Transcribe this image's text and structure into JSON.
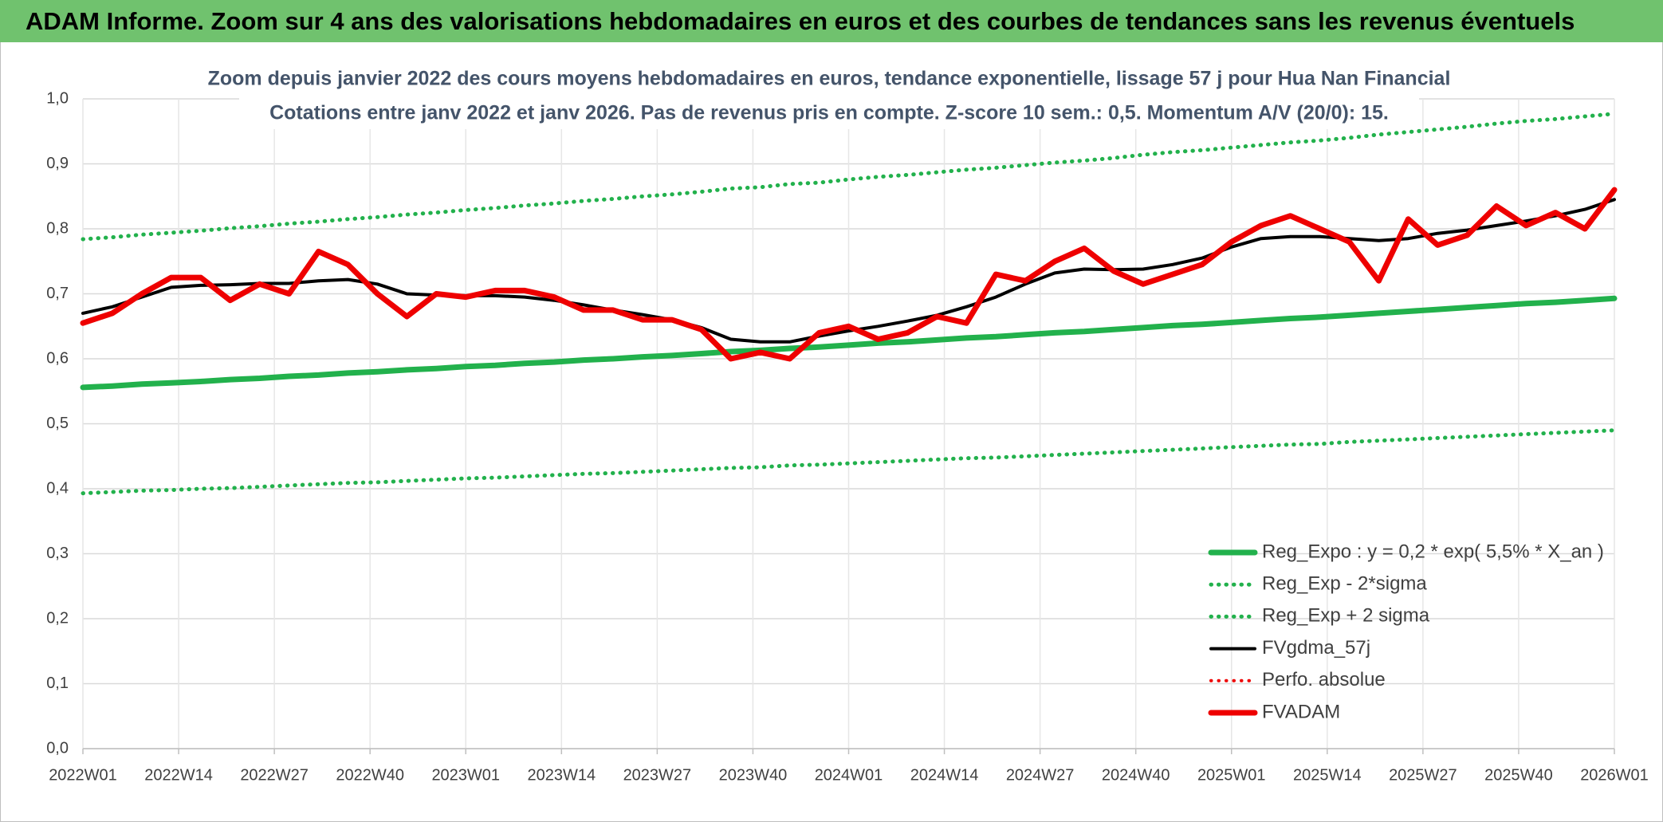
{
  "chart_data": {
    "type": "line",
    "header": "ADAM Informe. Zoom sur 4 ans des valorisations hebdomadaires en euros et des courbes de tendances sans les revenus éventuels",
    "title": "Zoom depuis janvier 2022  des cours moyens hebdomadaires en euros, tendance exponentielle, lissage 57 j pour Hua Nan Financial",
    "subtitle": "Cotations entre janv 2022 et janv 2026. Pas de revenus pris en compte. Z-score 10 sem.: 0,5. Momentum A/V (20/0): 15.",
    "x": [
      0,
      4,
      8,
      12,
      16,
      20,
      24,
      28,
      32,
      36,
      40,
      44,
      48,
      52,
      56,
      60,
      64,
      68,
      72,
      76,
      80,
      84,
      88,
      92,
      96,
      100,
      104,
      108,
      112,
      116,
      120,
      124,
      128,
      132,
      136,
      140,
      144,
      148,
      152,
      156,
      160,
      164,
      168,
      172,
      176,
      180,
      184,
      188,
      192,
      196,
      200,
      204,
      208
    ],
    "xlim": [
      0,
      208
    ],
    "xticks": [
      {
        "value": 0,
        "label": "2022W01"
      },
      {
        "value": 13,
        "label": "2022W14"
      },
      {
        "value": 26,
        "label": "2022W27"
      },
      {
        "value": 39,
        "label": "2022W40"
      },
      {
        "value": 52,
        "label": "2023W01"
      },
      {
        "value": 65,
        "label": "2023W14"
      },
      {
        "value": 78,
        "label": "2023W27"
      },
      {
        "value": 91,
        "label": "2023W40"
      },
      {
        "value": 104,
        "label": "2024W01"
      },
      {
        "value": 117,
        "label": "2024W14"
      },
      {
        "value": 130,
        "label": "2024W27"
      },
      {
        "value": 143,
        "label": "2024W40"
      },
      {
        "value": 156,
        "label": "2025W01"
      },
      {
        "value": 169,
        "label": "2025W14"
      },
      {
        "value": 182,
        "label": "2025W27"
      },
      {
        "value": 195,
        "label": "2025W40"
      },
      {
        "value": 208,
        "label": "2026W01"
      }
    ],
    "ylim": [
      0,
      1
    ],
    "yticks": [
      {
        "value": 0,
        "label": "0,0"
      },
      {
        "value": 0.1,
        "label": "0,1"
      },
      {
        "value": 0.2,
        "label": "0,2"
      },
      {
        "value": 0.3,
        "label": "0,3"
      },
      {
        "value": 0.4,
        "label": "0,4"
      },
      {
        "value": 0.5,
        "label": "0,5"
      },
      {
        "value": 0.6,
        "label": "0,6"
      },
      {
        "value": 0.7,
        "label": "0,7"
      },
      {
        "value": 0.8,
        "label": "0,8"
      },
      {
        "value": 0.9,
        "label": "0,9"
      },
      {
        "value": 1,
        "label": "1,0"
      }
    ],
    "grid": true,
    "legend": "lower right",
    "series": [
      {
        "name": "Reg_Expo : y = 0,2 * exp( 5,5% *  X_an )",
        "color": "#22b14c",
        "line_style": "solid",
        "values": [
          0.556,
          0.558,
          0.561,
          0.563,
          0.565,
          0.568,
          0.57,
          0.573,
          0.575,
          0.578,
          0.58,
          0.583,
          0.585,
          0.588,
          0.59,
          0.593,
          0.595,
          0.598,
          0.6,
          0.603,
          0.605,
          0.608,
          0.611,
          0.613,
          0.616,
          0.618,
          0.621,
          0.624,
          0.626,
          0.629,
          0.632,
          0.634,
          0.637,
          0.64,
          0.642,
          0.645,
          0.648,
          0.651,
          0.653,
          0.656,
          0.659,
          0.662,
          0.664,
          0.667,
          0.67,
          0.673,
          0.676,
          0.679,
          0.682,
          0.685,
          0.687,
          0.69,
          0.693
        ]
      },
      {
        "name": "Reg_Exp - 2*sigma",
        "color": "#22b14c",
        "line_style": "dotted",
        "values": [
          0.393,
          0.395,
          0.397,
          0.398,
          0.4,
          0.401,
          0.403,
          0.405,
          0.407,
          0.409,
          0.41,
          0.412,
          0.414,
          0.416,
          0.417,
          0.419,
          0.421,
          0.423,
          0.424,
          0.426,
          0.428,
          0.43,
          0.432,
          0.433,
          0.436,
          0.437,
          0.439,
          0.441,
          0.443,
          0.445,
          0.447,
          0.448,
          0.45,
          0.452,
          0.454,
          0.456,
          0.458,
          0.46,
          0.462,
          0.464,
          0.466,
          0.468,
          0.469,
          0.472,
          0.474,
          0.476,
          0.478,
          0.48,
          0.482,
          0.484,
          0.486,
          0.488,
          0.49
        ]
      },
      {
        "name": "Reg_Exp + 2 sigma",
        "color": "#22b14c",
        "line_style": "dotted",
        "values": [
          0.784,
          0.787,
          0.791,
          0.794,
          0.797,
          0.801,
          0.804,
          0.808,
          0.811,
          0.815,
          0.818,
          0.822,
          0.825,
          0.829,
          0.832,
          0.836,
          0.839,
          0.843,
          0.846,
          0.85,
          0.853,
          0.857,
          0.862,
          0.864,
          0.869,
          0.871,
          0.876,
          0.88,
          0.883,
          0.887,
          0.891,
          0.894,
          0.898,
          0.902,
          0.905,
          0.909,
          0.914,
          0.918,
          0.921,
          0.925,
          0.929,
          0.933,
          0.936,
          0.94,
          0.945,
          0.949,
          0.953,
          0.957,
          0.962,
          0.966,
          0.969,
          0.973,
          0.977
        ]
      },
      {
        "name": "FVgdma_57j",
        "color": "#000000",
        "line_style": "solid",
        "values": [
          0.67,
          0.68,
          0.695,
          0.71,
          0.713,
          0.714,
          0.716,
          0.716,
          0.72,
          0.722,
          0.715,
          0.7,
          0.698,
          0.697,
          0.697,
          0.695,
          0.69,
          0.683,
          0.675,
          0.668,
          0.66,
          0.648,
          0.63,
          0.626,
          0.626,
          0.635,
          0.643,
          0.65,
          0.658,
          0.667,
          0.68,
          0.695,
          0.715,
          0.732,
          0.738,
          0.737,
          0.738,
          0.745,
          0.755,
          0.772,
          0.785,
          0.788,
          0.788,
          0.785,
          0.782,
          0.785,
          0.793,
          0.798,
          0.805,
          0.812,
          0.82,
          0.83,
          0.845
        ]
      },
      {
        "name": "Perfo. absolue",
        "color": "#ee0000",
        "line_style": "dotted",
        "values": [
          null,
          null,
          null,
          null,
          null,
          null,
          null,
          null,
          null,
          null,
          null,
          null,
          null,
          null,
          null,
          null,
          null,
          null,
          null,
          null,
          null,
          null,
          null,
          null,
          null,
          null,
          null,
          null,
          null,
          null,
          null,
          null,
          null,
          null,
          null,
          null,
          null,
          null,
          null,
          null,
          null,
          null,
          null,
          null,
          null,
          null,
          null,
          null,
          null,
          null,
          null,
          null,
          null
        ]
      },
      {
        "name": "FVADAM",
        "color": "#ee0000",
        "line_style": "solid",
        "values": [
          0.655,
          0.67,
          0.7,
          0.725,
          0.725,
          0.69,
          0.715,
          0.7,
          0.765,
          0.745,
          0.7,
          0.665,
          0.7,
          0.695,
          0.705,
          0.705,
          0.695,
          0.675,
          0.675,
          0.66,
          0.66,
          0.645,
          0.6,
          0.61,
          0.6,
          0.64,
          0.65,
          0.63,
          0.64,
          0.665,
          0.655,
          0.73,
          0.72,
          0.75,
          0.77,
          0.735,
          0.715,
          0.73,
          0.745,
          0.78,
          0.805,
          0.82,
          0.8,
          0.78,
          0.72,
          0.815,
          0.775,
          0.79,
          0.835,
          0.805,
          0.825,
          0.8,
          0.86
        ]
      }
    ]
  }
}
